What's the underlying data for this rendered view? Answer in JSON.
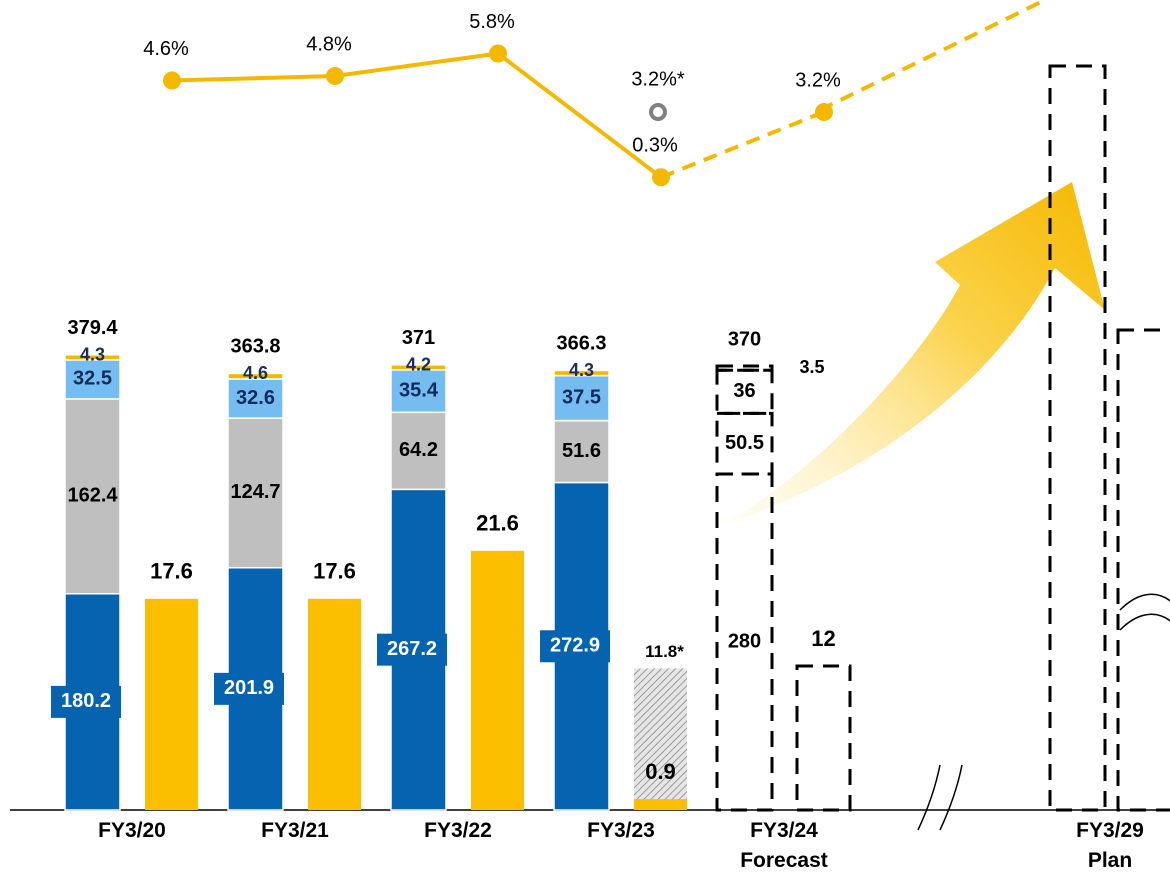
{
  "chart_data": {
    "type": "bar",
    "categories": [
      "FY3/20",
      "FY3/21",
      "FY3/22",
      "FY3/23",
      "FY3/24\nForecast",
      "FY3/29\nPlan"
    ],
    "ylim": [
      0,
      380
    ],
    "y2lim": [
      0,
      38
    ],
    "y3lim": [
      0,
      8
    ],
    "series": [
      {
        "kind": "stack",
        "color": "#0563af",
        "values": [
          180.2,
          201.9,
          267.2,
          272.9,
          280.0,
          null
        ],
        "style": [
          "solid",
          "solid",
          "solid",
          "solid",
          "dashed",
          null
        ]
      },
      {
        "kind": "stack",
        "color": "#bfbfbf",
        "values": [
          162.4,
          124.7,
          64.2,
          51.6,
          50.5,
          null
        ],
        "style": [
          "solid",
          "solid",
          "solid",
          "solid",
          "dashed",
          null
        ]
      },
      {
        "kind": "stack",
        "color": "#75bdf0",
        "values": [
          32.5,
          32.6,
          35.4,
          37.5,
          36.0,
          null
        ],
        "style": [
          "solid",
          "solid",
          "solid",
          "solid",
          "dashed",
          null
        ]
      },
      {
        "kind": "stack",
        "color": "#f5b800",
        "values": [
          4.3,
          4.6,
          4.2,
          4.3,
          3.5,
          null
        ],
        "style": [
          "solid",
          "solid",
          "solid",
          "solid",
          "dashed",
          null
        ]
      },
      {
        "kind": "bar",
        "axis": "y2",
        "color": "#fbbf00",
        "values": [
          17.6,
          17.6,
          21.6,
          0.9,
          12.0,
          null
        ],
        "style": [
          "solid",
          "solid",
          "solid",
          "solid",
          "dashed",
          null
        ]
      },
      {
        "kind": "bar",
        "axis": "y2",
        "pattern": "hatch",
        "values": [
          null,
          null,
          null,
          11.8,
          null,
          null
        ],
        "value_labels": [
          null,
          null,
          null,
          "11.8*",
          null,
          null
        ]
      },
      {
        "kind": "line",
        "axis": "y3",
        "color": "#f5b800",
        "values": [
          4.6,
          4.8,
          5.8,
          0.3,
          3.2,
          null
        ],
        "value_labels": [
          "4.6%",
          "4.8%",
          "5.8%",
          "0.3%",
          "3.2%",
          null
        ],
        "style": [
          "solid",
          "solid",
          "solid",
          "solid",
          "dashed",
          null
        ]
      },
      {
        "kind": "point",
        "axis": "y3",
        "color": "#808080",
        "values": [
          null,
          null,
          null,
          3.2,
          null,
          null
        ],
        "value_labels": [
          null,
          null,
          null,
          "3.2%*",
          null,
          null
        ]
      }
    ],
    "totals": [
      379.4,
      363.8,
      371.0,
      366.3,
      370.0,
      null
    ]
  }
}
